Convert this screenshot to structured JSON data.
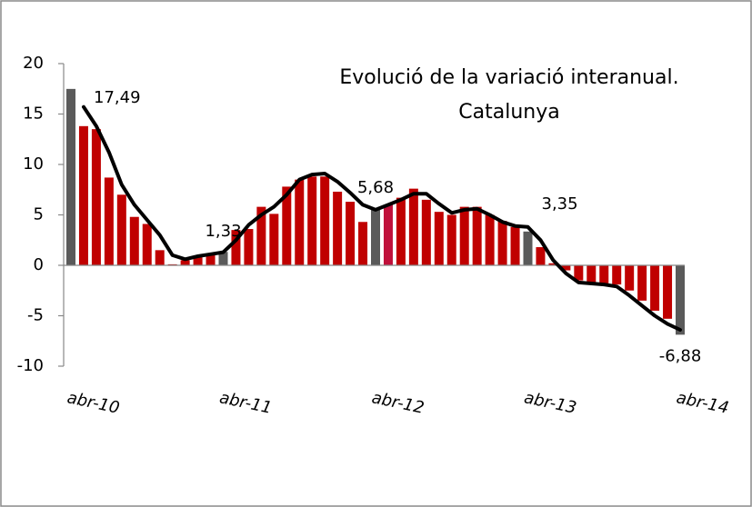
{
  "chart_data": {
    "type": "bar",
    "title": [
      "Evolució de la variació interanual.",
      "Catalunya"
    ],
    "categories": [
      "abr-10",
      null,
      null,
      null,
      null,
      null,
      null,
      null,
      null,
      null,
      null,
      null,
      "abr-11",
      null,
      null,
      null,
      null,
      null,
      null,
      null,
      null,
      null,
      null,
      null,
      "abr-12",
      null,
      null,
      null,
      null,
      null,
      null,
      null,
      null,
      null,
      null,
      null,
      "abr-13",
      null,
      null,
      null,
      null,
      null,
      null,
      null,
      null,
      null,
      null,
      null,
      "abr-14"
    ],
    "values": [
      17.49,
      13.8,
      13.5,
      8.7,
      7.0,
      4.8,
      4.1,
      1.5,
      0.1,
      0.5,
      0.8,
      1.0,
      1.33,
      3.5,
      3.6,
      5.8,
      5.1,
      7.8,
      8.5,
      8.8,
      8.8,
      7.3,
      6.3,
      4.3,
      5.68,
      6.0,
      6.7,
      7.6,
      6.5,
      5.3,
      5.0,
      5.8,
      5.8,
      5.0,
      4.4,
      3.8,
      3.35,
      1.8,
      0.2,
      -0.5,
      -1.5,
      -1.8,
      -1.8,
      -1.9,
      -2.5,
      -3.5,
      -4.5,
      -5.3,
      -6.88
    ],
    "value_labels": [
      "17,49",
      null,
      null,
      null,
      null,
      null,
      null,
      null,
      null,
      null,
      null,
      null,
      "1,33",
      null,
      null,
      null,
      null,
      null,
      null,
      null,
      null,
      null,
      null,
      null,
      "5,68",
      null,
      null,
      null,
      null,
      null,
      null,
      null,
      null,
      null,
      null,
      null,
      "3,35",
      null,
      null,
      null,
      null,
      null,
      null,
      null,
      null,
      null,
      null,
      null,
      "-6,88"
    ],
    "colors": [
      "#5a5a5a",
      "#c00000",
      "#c00000",
      "#c00000",
      "#c00000",
      "#c00000",
      "#c00000",
      "#c00000",
      "#c00000",
      "#c00000",
      "#c00000",
      "#c00000",
      "#5a5a5a",
      "#c00000",
      "#c00000",
      "#c00000",
      "#c00000",
      "#c00000",
      "#c00000",
      "#c00000",
      "#c00000",
      "#c00000",
      "#c00000",
      "#c00000",
      "#5a5a5a",
      "#c0103a",
      "#c00000",
      "#c00000",
      "#c00000",
      "#c00000",
      "#c00000",
      "#c00000",
      "#c00000",
      "#c00000",
      "#c00000",
      "#c00000",
      "#5a5a5a",
      "#c00000",
      "#c00000",
      "#c00000",
      "#c00000",
      "#c00000",
      "#c00000",
      "#c00000",
      "#c00000",
      "#c00000",
      "#c00000",
      "#c00000",
      "#5a5a5a"
    ],
    "line": {
      "color": "#000000",
      "values": [
        null,
        15.7,
        13.8,
        11.2,
        8.0,
        6.0,
        4.5,
        3.0,
        1.0,
        0.6,
        0.9,
        1.1,
        1.3,
        2.5,
        4.0,
        5.0,
        5.8,
        7.0,
        8.5,
        9.0,
        9.1,
        8.3,
        7.2,
        6.0,
        5.5,
        6.0,
        6.5,
        7.1,
        7.1,
        6.1,
        5.2,
        5.5,
        5.6,
        5.0,
        4.3,
        3.9,
        3.8,
        2.5,
        0.5,
        -0.8,
        -1.7,
        -1.8,
        -1.9,
        -2.1,
        -3.0,
        -4.0,
        -5.0,
        -5.8,
        -6.4
      ]
    },
    "ylim": [
      -10,
      20
    ],
    "yticks": [
      -10,
      -5,
      0,
      5,
      10,
      15,
      20
    ]
  }
}
